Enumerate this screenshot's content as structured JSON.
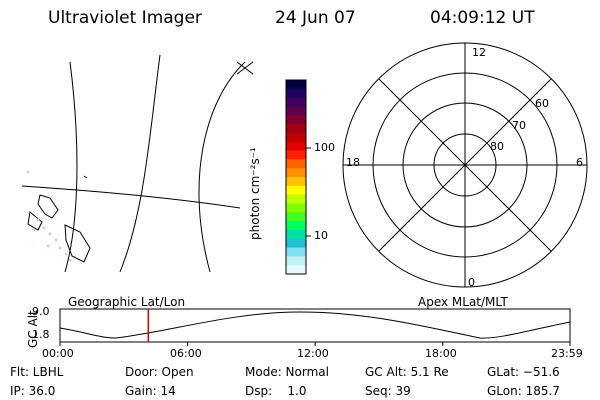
{
  "header": {
    "title": "Ultraviolet Imager",
    "date": "24 Jun 07",
    "time": "04:09:12 UT"
  },
  "colorbar": {
    "label": "photon cm⁻²s⁻¹",
    "ticks": [
      "100",
      "10"
    ],
    "colors": [
      "#000040",
      "#200060",
      "#400060",
      "#600050",
      "#800030",
      "#a00010",
      "#c00000",
      "#e00000",
      "#ff2000",
      "#ff6000",
      "#ff9000",
      "#ffc000",
      "#ffff00",
      "#c0ff00",
      "#80ff00",
      "#40ff20",
      "#00ff60",
      "#00e0a0",
      "#20c0d0",
      "#80e0f0",
      "#c0f0f8",
      "#e8f8ff"
    ]
  },
  "polar": {
    "labels": {
      "top": "12",
      "bottom": "0",
      "left": "18",
      "right": "6"
    },
    "rings": [
      "60",
      "70",
      "80"
    ]
  },
  "strip": {
    "left_title": "Geographic Lat/Lon",
    "right_title": "Apex MLat/MLT",
    "axis_label": "GC Alt",
    "ymax": "9.0",
    "ymin": "1.8",
    "xticks": [
      "00:00",
      "06:00",
      "12:00",
      "18:00",
      "23:59"
    ],
    "marker_time_hours": 4.15
  },
  "info": {
    "row1": [
      "Flt: LBHL",
      "Door: Open",
      "Mode: Normal",
      "GC Alt: 5.1 Re",
      "GLat: −51.6"
    ],
    "row2": [
      "IP: 36.0",
      "Gain: 14",
      "Dsp:    1.0",
      "Seq: 39",
      "GLon: 185.7"
    ]
  }
}
